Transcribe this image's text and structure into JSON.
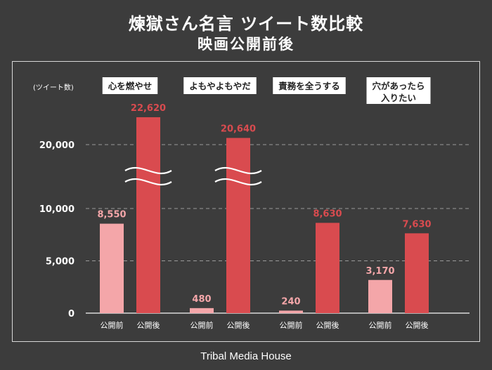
{
  "chart_data": {
    "type": "bar",
    "title": "煉獄さん名言 ツイート数比較",
    "subtitle": "映画公開前後",
    "ylabel": "(ツイート数)",
    "ylim": [
      0,
      20000
    ],
    "yticks": [
      "0",
      "5,000",
      "10,000",
      "20,000"
    ],
    "axis_break": true,
    "groups": [
      {
        "name": "心を燃やせ",
        "name_lines": [
          "心を燃やせ"
        ],
        "values": [
          8550,
          22620
        ],
        "labels": [
          "8,550",
          "22,620"
        ]
      },
      {
        "name": "よもやよもやだ",
        "name_lines": [
          "よもやよもやだ"
        ],
        "values": [
          480,
          20640
        ],
        "labels": [
          "480",
          "20,640"
        ]
      },
      {
        "name": "責務を全うする",
        "name_lines": [
          "責務を全うする"
        ],
        "values": [
          240,
          8630
        ],
        "labels": [
          "240",
          "8,630"
        ]
      },
      {
        "name": "穴があったら入りたい",
        "name_lines": [
          "穴があったら",
          "入りたい"
        ],
        "values": [
          3170,
          7630
        ],
        "labels": [
          "3,170",
          "7,630"
        ]
      }
    ],
    "series": [
      {
        "name": "公開前",
        "color": "#f4a6a9"
      },
      {
        "name": "公開後",
        "color": "#d94b4f"
      }
    ],
    "grid": true,
    "legend": "none"
  },
  "footer": "Tribal Media House"
}
